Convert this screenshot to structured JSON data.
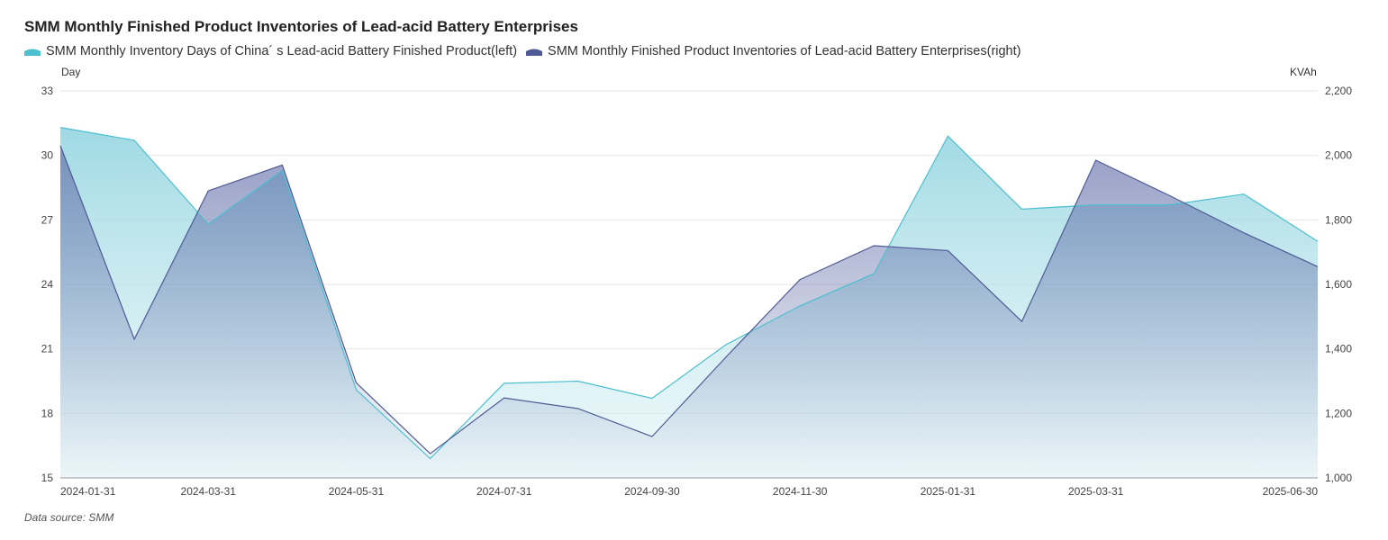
{
  "title": "SMM Monthly Finished Product Inventories of Lead-acid Battery Enterprises",
  "source": "Data source:  SMM",
  "colors": {
    "series1": "#4cbfcf",
    "series1_fill": "#a6dde6",
    "series2": "#4f5a94",
    "series2_fill": "#6f7bb0",
    "grid": "#e6e6e6",
    "axis": "#999999"
  },
  "chart_data": {
    "type": "area",
    "title": "SMM Monthly Finished Product Inventories of Lead-acid Battery Enterprises",
    "x": [
      "2024-01-31",
      "2024-02-29",
      "2024-03-31",
      "2024-04-30",
      "2024-05-31",
      "2024-06-30",
      "2024-07-31",
      "2024-08-31",
      "2024-09-30",
      "2024-10-31",
      "2024-11-30",
      "2024-12-31",
      "2025-01-31",
      "2025-02-28",
      "2025-03-31",
      "2025-04-30",
      "2025-05-31",
      "2025-06-30"
    ],
    "x_tick_labels": [
      "2024-01-31",
      "2024-03-31",
      "2024-05-31",
      "2024-07-31",
      "2024-09-30",
      "2024-11-30",
      "2025-01-31",
      "2025-03-31",
      "2025-06-30"
    ],
    "left_axis": {
      "unit": "Day",
      "ylim": [
        15,
        33
      ],
      "ticks": [
        "33",
        "30",
        "27",
        "24",
        "21",
        "18",
        "15"
      ]
    },
    "right_axis": {
      "unit": "KVAh",
      "ylim": [
        1000,
        2200
      ],
      "ticks": [
        "2,200",
        "2,000",
        "1,800",
        "1,600",
        "1,400",
        "1,200",
        "1,000"
      ]
    },
    "grid": true,
    "legend_position": "top-left",
    "series": [
      {
        "name": "SMM Monthly Inventory Days of China´ s Lead-acid Battery Finished Product(left)",
        "axis": "left",
        "values": [
          31.3,
          30.7,
          26.8,
          29.3,
          19.1,
          15.9,
          19.4,
          19.5,
          18.7,
          21.2,
          23.0,
          24.5,
          30.9,
          27.5,
          27.7,
          27.7,
          28.2,
          26.0
        ]
      },
      {
        "name": "SMM Monthly Finished Product Inventories of Lead-acid Battery Enterprises(right)",
        "axis": "right",
        "values": [
          2030,
          1430,
          1890,
          1970,
          1295,
          1075,
          1248,
          1215,
          1128,
          1375,
          1615,
          1720,
          1705,
          1485,
          1985,
          1875,
          1760,
          1655
        ]
      }
    ]
  }
}
